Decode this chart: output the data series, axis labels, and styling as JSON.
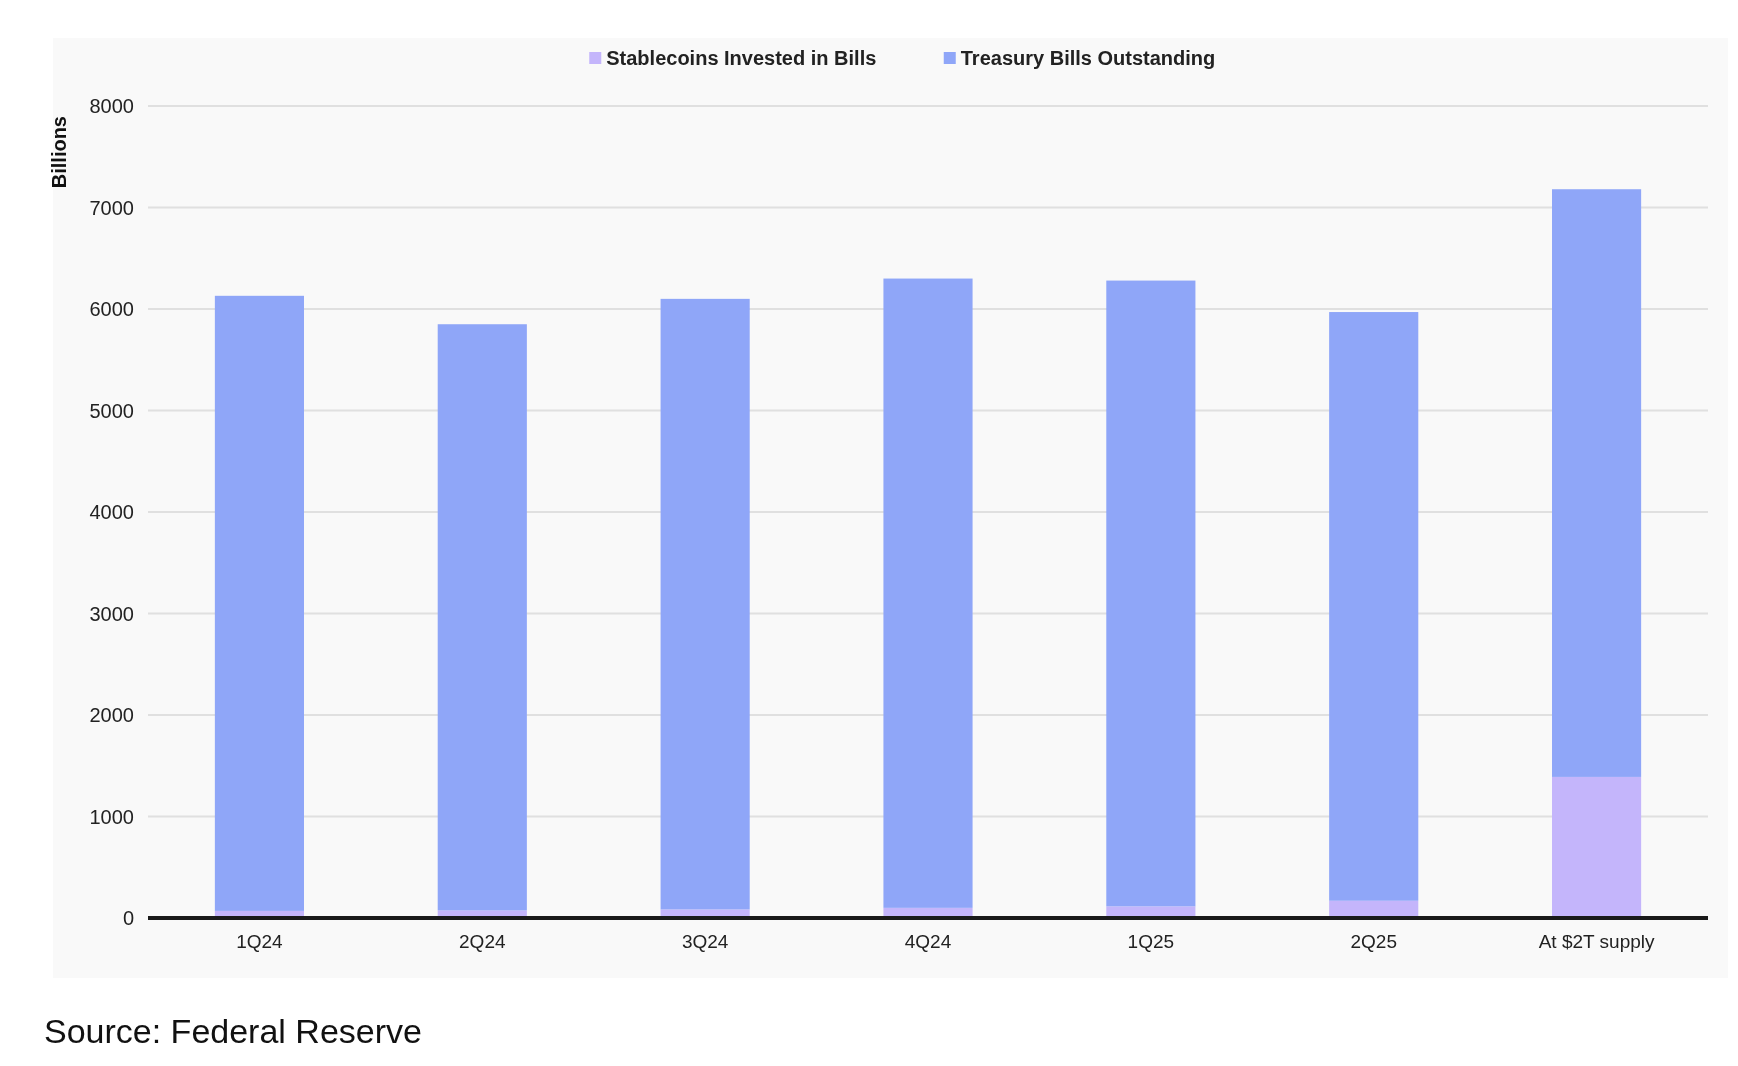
{
  "chart_data": {
    "type": "bar",
    "stacked": true,
    "ylabel": "Billions",
    "categories": [
      "1Q24",
      "2Q24",
      "3Q24",
      "4Q24",
      "1Q25",
      "2Q25",
      "At $2T supply"
    ],
    "series": [
      {
        "name": "Stablecoins Invested in Bills",
        "color": "#c4b5fb",
        "values": [
          70,
          75,
          85,
          100,
          115,
          170,
          1390
        ]
      },
      {
        "name": "Treasury Bills Outstanding",
        "color": "#8fa6f8",
        "values": [
          6060,
          5775,
          6015,
          6200,
          6165,
          5800,
          5790
        ]
      }
    ],
    "ylim": [
      0,
      8000
    ],
    "yticks": [
      0,
      1000,
      2000,
      3000,
      4000,
      5000,
      6000,
      7000,
      8000
    ],
    "grid": "y",
    "legend": "top",
    "annotations": [
      "Source: Federal Reserve"
    ]
  }
}
